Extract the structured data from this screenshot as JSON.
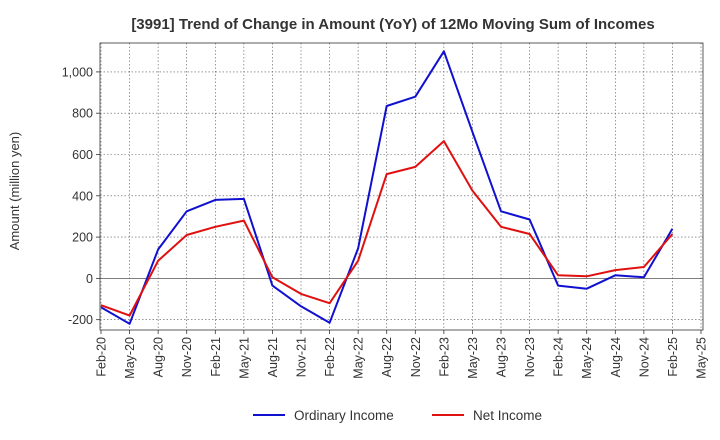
{
  "chart_data": {
    "type": "line",
    "title": "[3991]  Trend of Change in Amount (YoY) of 12Mo Moving Sum of Incomes",
    "ylabel": "Amount (million yen)",
    "xlabel": "",
    "ylim": [
      -250,
      1140
    ],
    "yticks": [
      -200,
      0,
      200,
      400,
      600,
      800,
      1000
    ],
    "ytick_labels": [
      "-200",
      "0",
      "200",
      "400",
      "600",
      "800",
      "1,000"
    ],
    "categories": [
      "Feb-20",
      "May-20",
      "Aug-20",
      "Nov-20",
      "Feb-21",
      "May-21",
      "Aug-21",
      "Nov-21",
      "Feb-22",
      "May-22",
      "Aug-22",
      "Nov-22",
      "Feb-23",
      "May-23",
      "Aug-23",
      "Nov-23",
      "Feb-24",
      "May-24",
      "Aug-24",
      "Nov-24",
      "Feb-25",
      "May-25"
    ],
    "grid": true,
    "legend_position": "bottom",
    "series": [
      {
        "name": "Ordinary Income",
        "color": "#1010d0",
        "values": [
          -140,
          -220,
          140,
          325,
          380,
          385,
          -35,
          -135,
          -215,
          145,
          835,
          880,
          1100,
          710,
          325,
          285,
          -35,
          -50,
          15,
          5,
          240,
          null
        ]
      },
      {
        "name": "Net Income",
        "color": "#e01010",
        "values": [
          -130,
          -180,
          85,
          210,
          250,
          280,
          5,
          -75,
          -120,
          85,
          505,
          540,
          665,
          425,
          250,
          215,
          15,
          10,
          40,
          55,
          215,
          null
        ]
      }
    ]
  }
}
